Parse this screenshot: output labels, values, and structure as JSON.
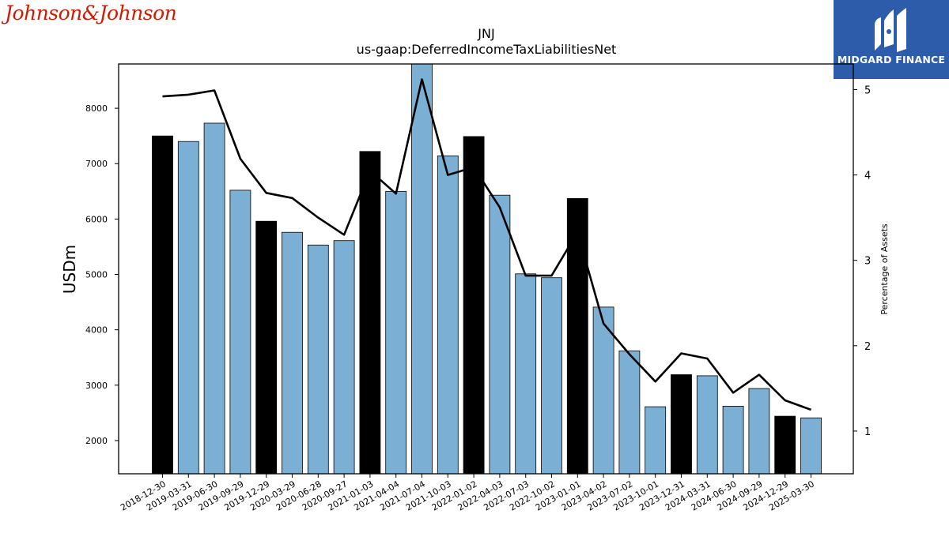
{
  "logos": {
    "left_text": "Johnson&Johnson",
    "right_text": "MIDGARD FINANCE",
    "right_bg": "#2d5caa",
    "left_color": "#d51900"
  },
  "chart_data": {
    "type": "bar",
    "title": "JNJ",
    "subtitle": "us-gaap:DeferredIncomeTaxLiabilitiesNet",
    "ylabel": "USDm",
    "y2label": "Percentage of Assets",
    "ylim": [
      1400,
      8800
    ],
    "y2lim": [
      0.5,
      5.3
    ],
    "yticks": [
      2000,
      3000,
      4000,
      5000,
      6000,
      7000,
      8000
    ],
    "y2ticks": [
      1,
      2,
      3,
      4,
      5
    ],
    "categories": [
      "2018-12-30",
      "2019-03-31",
      "2019-06-30",
      "2019-09-29",
      "2019-12-29",
      "2020-03-29",
      "2020-06-28",
      "2020-09-27",
      "2021-01-03",
      "2021-04-04",
      "2021-07-04",
      "2021-10-03",
      "2022-01-02",
      "2022-04-03",
      "2022-07-03",
      "2022-10-02",
      "2023-01-01",
      "2023-04-02",
      "2023-07-02",
      "2023-10-01",
      "2023-12-31",
      "2024-03-31",
      "2024-06-30",
      "2024-09-29",
      "2024-12-29",
      "2025-03-30"
    ],
    "series": [
      {
        "type": "bar",
        "values": [
          7500,
          7400,
          7730,
          6520,
          5960,
          5760,
          5530,
          5610,
          7220,
          6500,
          8800,
          7140,
          7490,
          6430,
          5010,
          4940,
          6370,
          4410,
          3620,
          2610,
          3190,
          3170,
          2620,
          2940,
          2440,
          2410
        ],
        "highlight": [
          true,
          false,
          false,
          false,
          true,
          false,
          false,
          false,
          true,
          false,
          false,
          false,
          true,
          false,
          false,
          false,
          true,
          false,
          false,
          false,
          true,
          false,
          false,
          false,
          true,
          false
        ]
      },
      {
        "type": "line",
        "axis": "right",
        "values": [
          4.92,
          4.94,
          4.99,
          4.19,
          3.79,
          3.73,
          3.5,
          3.3,
          4.05,
          3.78,
          5.12,
          4.0,
          4.09,
          3.62,
          2.82,
          2.82,
          3.33,
          2.26,
          1.9,
          1.58,
          1.91,
          1.85,
          1.45,
          1.66,
          1.36,
          1.25
        ]
      }
    ],
    "colors": {
      "bar": "#7bafd4",
      "bar_highlight": "#000000",
      "line": "#000000"
    }
  }
}
